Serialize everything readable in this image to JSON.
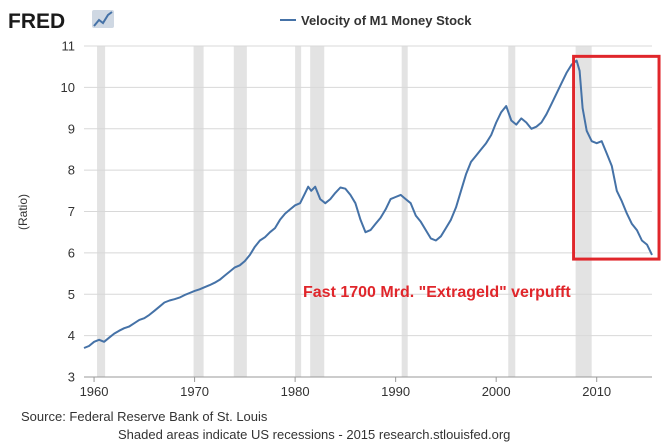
{
  "brand": {
    "logo_text": "FRED",
    "logo_icon": "chart-line-icon"
  },
  "chart_data": {
    "type": "line",
    "title": "",
    "xlabel": "",
    "ylabel": "(Ratio)",
    "xlim": [
      1959,
      2015.5
    ],
    "ylim": [
      3,
      11
    ],
    "x_ticks": [
      1960,
      1970,
      1980,
      1990,
      2000,
      2010
    ],
    "y_ticks": [
      3,
      4,
      5,
      6,
      7,
      8,
      9,
      10,
      11
    ],
    "grid": true,
    "legend_position": "top-center",
    "series": [
      {
        "name": "Velocity of M1 Money Stock",
        "color": "#4572a7",
        "points": [
          [
            1959.0,
            3.7
          ],
          [
            1959.5,
            3.75
          ],
          [
            1960.0,
            3.85
          ],
          [
            1960.5,
            3.9
          ],
          [
            1961.0,
            3.85
          ],
          [
            1961.5,
            3.95
          ],
          [
            1962.0,
            4.05
          ],
          [
            1962.5,
            4.12
          ],
          [
            1963.0,
            4.18
          ],
          [
            1963.5,
            4.22
          ],
          [
            1964.0,
            4.3
          ],
          [
            1964.5,
            4.38
          ],
          [
            1965.0,
            4.42
          ],
          [
            1965.5,
            4.5
          ],
          [
            1966.0,
            4.6
          ],
          [
            1966.5,
            4.7
          ],
          [
            1967.0,
            4.8
          ],
          [
            1967.5,
            4.85
          ],
          [
            1968.0,
            4.88
          ],
          [
            1968.5,
            4.92
          ],
          [
            1969.0,
            4.98
          ],
          [
            1969.5,
            5.03
          ],
          [
            1970.0,
            5.08
          ],
          [
            1970.5,
            5.12
          ],
          [
            1971.0,
            5.17
          ],
          [
            1971.5,
            5.22
          ],
          [
            1972.0,
            5.28
          ],
          [
            1972.5,
            5.35
          ],
          [
            1973.0,
            5.45
          ],
          [
            1973.5,
            5.55
          ],
          [
            1974.0,
            5.65
          ],
          [
            1974.5,
            5.7
          ],
          [
            1975.0,
            5.8
          ],
          [
            1975.5,
            5.95
          ],
          [
            1976.0,
            6.15
          ],
          [
            1976.5,
            6.3
          ],
          [
            1977.0,
            6.38
          ],
          [
            1977.5,
            6.5
          ],
          [
            1978.0,
            6.6
          ],
          [
            1978.5,
            6.8
          ],
          [
            1979.0,
            6.95
          ],
          [
            1979.5,
            7.05
          ],
          [
            1980.0,
            7.15
          ],
          [
            1980.5,
            7.2
          ],
          [
            1981.0,
            7.45
          ],
          [
            1981.3,
            7.6
          ],
          [
            1981.6,
            7.5
          ],
          [
            1982.0,
            7.6
          ],
          [
            1982.5,
            7.3
          ],
          [
            1983.0,
            7.2
          ],
          [
            1983.5,
            7.3
          ],
          [
            1984.0,
            7.45
          ],
          [
            1984.5,
            7.58
          ],
          [
            1985.0,
            7.55
          ],
          [
            1985.5,
            7.4
          ],
          [
            1986.0,
            7.2
          ],
          [
            1986.5,
            6.8
          ],
          [
            1987.0,
            6.5
          ],
          [
            1987.5,
            6.55
          ],
          [
            1988.0,
            6.7
          ],
          [
            1988.5,
            6.85
          ],
          [
            1989.0,
            7.05
          ],
          [
            1989.5,
            7.3
          ],
          [
            1990.0,
            7.35
          ],
          [
            1990.5,
            7.4
          ],
          [
            1991.0,
            7.3
          ],
          [
            1991.5,
            7.2
          ],
          [
            1992.0,
            6.9
          ],
          [
            1992.5,
            6.75
          ],
          [
            1993.0,
            6.55
          ],
          [
            1993.5,
            6.35
          ],
          [
            1994.0,
            6.3
          ],
          [
            1994.5,
            6.4
          ],
          [
            1995.0,
            6.6
          ],
          [
            1995.5,
            6.8
          ],
          [
            1996.0,
            7.1
          ],
          [
            1996.5,
            7.5
          ],
          [
            1997.0,
            7.9
          ],
          [
            1997.5,
            8.2
          ],
          [
            1998.0,
            8.35
          ],
          [
            1998.5,
            8.5
          ],
          [
            1999.0,
            8.65
          ],
          [
            1999.5,
            8.85
          ],
          [
            2000.0,
            9.15
          ],
          [
            2000.5,
            9.4
          ],
          [
            2001.0,
            9.55
          ],
          [
            2001.5,
            9.2
          ],
          [
            2002.0,
            9.1
          ],
          [
            2002.5,
            9.25
          ],
          [
            2003.0,
            9.15
          ],
          [
            2003.5,
            9.0
          ],
          [
            2004.0,
            9.05
          ],
          [
            2004.5,
            9.15
          ],
          [
            2005.0,
            9.35
          ],
          [
            2005.5,
            9.6
          ],
          [
            2006.0,
            9.85
          ],
          [
            2006.5,
            10.1
          ],
          [
            2007.0,
            10.35
          ],
          [
            2007.5,
            10.55
          ],
          [
            2008.0,
            10.65
          ],
          [
            2008.3,
            10.4
          ],
          [
            2008.6,
            9.5
          ],
          [
            2009.0,
            8.95
          ],
          [
            2009.5,
            8.7
          ],
          [
            2010.0,
            8.65
          ],
          [
            2010.5,
            8.7
          ],
          [
            2011.0,
            8.4
          ],
          [
            2011.5,
            8.1
          ],
          [
            2012.0,
            7.5
          ],
          [
            2012.5,
            7.25
          ],
          [
            2013.0,
            6.95
          ],
          [
            2013.5,
            6.7
          ],
          [
            2014.0,
            6.55
          ],
          [
            2014.5,
            6.3
          ],
          [
            2015.0,
            6.2
          ],
          [
            2015.5,
            5.95
          ]
        ]
      }
    ],
    "recessions": [
      [
        1960.3,
        1961.1
      ],
      [
        1969.9,
        1970.9
      ],
      [
        1973.9,
        1975.2
      ],
      [
        1980.0,
        1980.6
      ],
      [
        1981.5,
        1982.9
      ],
      [
        1990.6,
        1991.2
      ],
      [
        2001.2,
        2001.9
      ],
      [
        2007.9,
        2009.5
      ]
    ],
    "highlight_box": {
      "x": [
        2007.7,
        2016.2
      ],
      "y": [
        5.85,
        10.75
      ],
      "color": "#e0262b"
    },
    "annotation": "Fast 1700 Mrd. \"Extrageld\" verpufft"
  },
  "footer": {
    "source": "Source: Federal Reserve Bank of St. Louis",
    "note": "Shaded areas indicate US recessions - 2015 research.stlouisfed.org"
  }
}
